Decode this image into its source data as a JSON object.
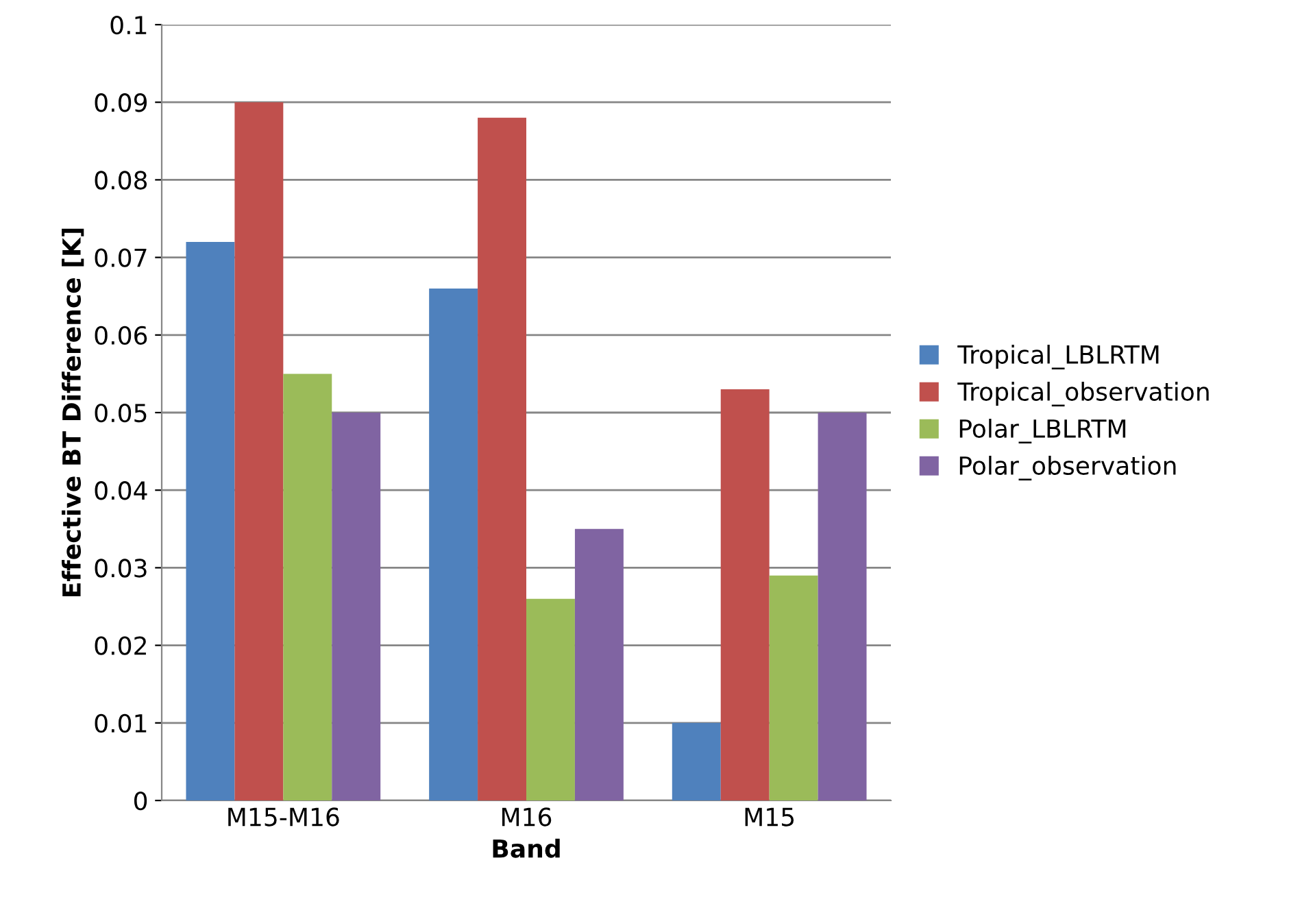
{
  "chart_data": {
    "type": "bar",
    "xlabel": "Band",
    "ylabel": "Effective BT Difference [K]",
    "categories": [
      "M15-M16",
      "M16",
      "M15"
    ],
    "series": [
      {
        "name": "Tropical_LBLRTM",
        "color": "#4f81bd",
        "values": [
          0.072,
          0.066,
          0.01
        ]
      },
      {
        "name": "Tropical_observation",
        "color": "#c0504d",
        "values": [
          0.09,
          0.088,
          0.053
        ]
      },
      {
        "name": "Polar_LBLRTM",
        "color": "#9bbb59",
        "values": [
          0.055,
          0.026,
          0.029
        ]
      },
      {
        "name": "Polar_observation",
        "color": "#8064a2",
        "values": [
          0.05,
          0.035,
          0.05
        ]
      }
    ],
    "ylim": [
      0,
      0.1
    ],
    "yticks": [
      0,
      0.01,
      0.02,
      0.03,
      0.04,
      0.05,
      0.06,
      0.07,
      0.08,
      0.09,
      0.1
    ],
    "grid": "y",
    "legend": "right"
  }
}
